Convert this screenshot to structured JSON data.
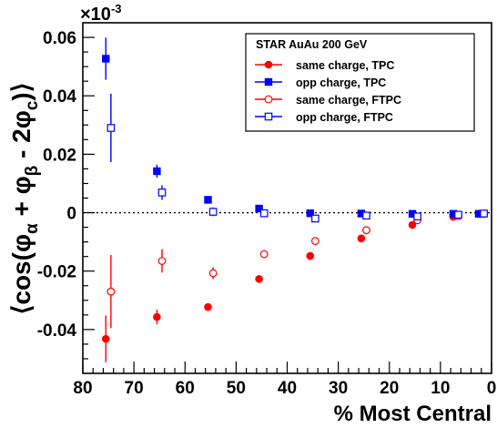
{
  "chart_data": {
    "type": "scatter",
    "title": "",
    "xlabel": "% Most Central",
    "ylabel": {
      "open": "⟨cos(φ",
      "sub_alpha": "α",
      "mid": " + φ",
      "sub_beta": "β",
      "tail": " - 2φ",
      "sub_c": "c",
      "close": ")⟩"
    },
    "y_exponent": "×10",
    "y_exponent_power": "-3",
    "xlim": [
      80,
      0
    ],
    "ylim": [
      -0.055,
      0.065
    ],
    "x_reversed": true,
    "x_ticks": [
      80,
      70,
      60,
      50,
      40,
      30,
      20,
      10,
      0
    ],
    "y_ticks": [
      -0.04,
      -0.02,
      0,
      0.02,
      0.04,
      0.06
    ],
    "y_tick_labels": [
      "-0.04",
      "-0.02",
      "0",
      "0.02",
      "0.04",
      "0.06"
    ],
    "zero_line": "dotted",
    "grid": false,
    "legend": {
      "placement": "top-right",
      "header": "STAR  AuAu 200 GeV"
    },
    "series": [
      {
        "name": "same charge, TPC",
        "marker": "filled-circle",
        "color": "#ff0000",
        "x": [
          75.5,
          65.5,
          55.5,
          45.5,
          35.5,
          25.5,
          15.5,
          7.5,
          2.5
        ],
        "y": [
          -0.0432,
          -0.0357,
          -0.0323,
          -0.0227,
          -0.0148,
          -0.0088,
          -0.0042,
          -0.0014,
          -0.0003
        ],
        "err": [
          0.008,
          0.0025,
          0.001,
          0.0007,
          0.0005,
          0.0004,
          0.0003,
          0.0003,
          0.0003
        ]
      },
      {
        "name": "opp charge, TPC",
        "marker": "filled-square",
        "color": "#0000ff",
        "x": [
          75.5,
          65.5,
          55.5,
          45.5,
          35.5,
          25.5,
          15.5,
          7.5,
          2.5
        ],
        "y": [
          0.0527,
          0.0142,
          0.0044,
          0.0014,
          -0.0002,
          -0.0003,
          -0.0004,
          -0.0004,
          -0.0004
        ],
        "err": [
          0.0072,
          0.0022,
          0.001,
          0.0007,
          0.0005,
          0.0004,
          0.0003,
          0.0003,
          0.0003
        ]
      },
      {
        "name": "same charge, FTPC",
        "marker": "open-circle",
        "color": "#ff0000",
        "x": [
          74.5,
          64.5,
          54.5,
          44.5,
          34.5,
          24.5,
          14.5,
          6.5,
          1.5
        ],
        "y": [
          -0.027,
          -0.0165,
          -0.0207,
          -0.0142,
          -0.0097,
          -0.006,
          -0.0026,
          -0.0012,
          -0.0004
        ],
        "err": [
          0.0125,
          0.004,
          0.002,
          0.001,
          0.0008,
          0.0006,
          0.0005,
          0.0004,
          0.0003
        ]
      },
      {
        "name": "opp charge, FTPC",
        "marker": "open-square",
        "color": "#0000ff",
        "x": [
          74.5,
          64.5,
          54.5,
          44.5,
          34.5,
          24.5,
          14.5,
          6.5,
          1.5
        ],
        "y": [
          0.029,
          0.0069,
          0.0003,
          -0.0002,
          -0.002,
          -0.001,
          -0.0013,
          -0.0007,
          -0.0003
        ],
        "err": [
          0.0117,
          0.0025,
          0.0015,
          0.0008,
          0.0006,
          0.0005,
          0.0004,
          0.0004,
          0.0003
        ]
      }
    ]
  }
}
